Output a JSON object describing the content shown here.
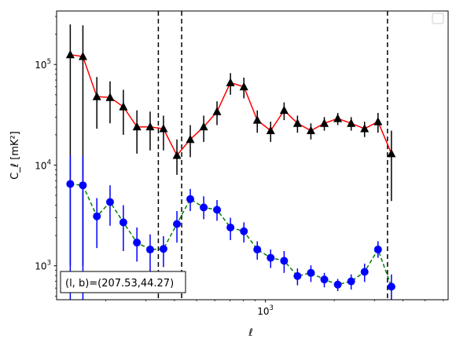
{
  "chart_data": {
    "type": "line",
    "xlabel": "ℓ",
    "ylabel": "C_ℓ [mK²]",
    "xscale": "log",
    "yscale": "log",
    "xlim": [
      122,
      6300
    ],
    "ylim": [
      460,
      340000
    ],
    "x_tick_labels": [
      {
        "value": 1000,
        "label": "10",
        "sup": "3"
      }
    ],
    "y_tick_labels": [
      {
        "value": 1000,
        "label": "10",
        "sup": "3"
      },
      {
        "value": 10000,
        "label": "10",
        "sup": "4"
      },
      {
        "value": 100000,
        "label": "10",
        "sup": "5"
      }
    ],
    "annotation": "(l, b)=(207.53,44.27)",
    "legend": {
      "position": "top-right",
      "entries": []
    },
    "grid": false,
    "vlines": [
      {
        "x": 340,
        "style": "dashed",
        "color": "#000000"
      },
      {
        "x": 430,
        "style": "dashed",
        "color": "#000000"
      },
      {
        "x": 3420,
        "style": "dashed",
        "color": "#000000"
      }
    ],
    "series": [
      {
        "color": "#ff0000",
        "marker": "triangle",
        "marker_color": "#000000",
        "line_style": "solid",
        "points": [
          {
            "x": 140,
            "y": 125000,
            "lo": 1000,
            "hi": 250000
          },
          {
            "x": 159,
            "y": 120000,
            "lo": 1000,
            "hi": 245000
          },
          {
            "x": 183,
            "y": 48000,
            "lo": 23000,
            "hi": 75000
          },
          {
            "x": 209,
            "y": 47000,
            "lo": 26000,
            "hi": 68000
          },
          {
            "x": 239,
            "y": 38000,
            "lo": 20000,
            "hi": 56000
          },
          {
            "x": 274,
            "y": 24000,
            "lo": 13000,
            "hi": 35000
          },
          {
            "x": 313,
            "y": 24000,
            "lo": 14000,
            "hi": 34000
          },
          {
            "x": 358,
            "y": 23000,
            "lo": 14000,
            "hi": 31000
          },
          {
            "x": 410,
            "y": 12500,
            "lo": 8000,
            "hi": 18000
          },
          {
            "x": 469,
            "y": 18000,
            "lo": 12000,
            "hi": 25000
          },
          {
            "x": 537,
            "y": 24000,
            "lo": 17000,
            "hi": 31000
          },
          {
            "x": 614,
            "y": 34000,
            "lo": 25000,
            "hi": 43000
          },
          {
            "x": 703,
            "y": 66000,
            "lo": 50000,
            "hi": 82000
          },
          {
            "x": 805,
            "y": 60000,
            "lo": 46000,
            "hi": 74000
          },
          {
            "x": 921,
            "y": 28000,
            "lo": 21000,
            "hi": 35000
          },
          {
            "x": 1054,
            "y": 22000,
            "lo": 17000,
            "hi": 27000
          },
          {
            "x": 1207,
            "y": 35000,
            "lo": 28000,
            "hi": 42000
          },
          {
            "x": 1381,
            "y": 26000,
            "lo": 21000,
            "hi": 31000
          },
          {
            "x": 1581,
            "y": 22000,
            "lo": 18000,
            "hi": 26000
          },
          {
            "x": 1810,
            "y": 26000,
            "lo": 22000,
            "hi": 30000
          },
          {
            "x": 2072,
            "y": 29000,
            "lo": 25000,
            "hi": 33000
          },
          {
            "x": 2372,
            "y": 26000,
            "lo": 22000,
            "hi": 30000
          },
          {
            "x": 2715,
            "y": 23000,
            "lo": 19000,
            "hi": 27000
          },
          {
            "x": 3108,
            "y": 27000,
            "lo": 21000,
            "hi": 33000
          },
          {
            "x": 3558,
            "y": 13000,
            "lo": 4400,
            "hi": 22000
          }
        ]
      },
      {
        "color": "#008000",
        "marker": "circle",
        "marker_color": "#0000ff",
        "line_style": "dashed",
        "points": [
          {
            "x": 140,
            "y": 6500,
            "lo": 400,
            "hi": 12500
          },
          {
            "x": 159,
            "y": 6300,
            "lo": 400,
            "hi": 12300
          },
          {
            "x": 183,
            "y": 3100,
            "lo": 1500,
            "hi": 4700
          },
          {
            "x": 209,
            "y": 4300,
            "lo": 2500,
            "hi": 6300
          },
          {
            "x": 239,
            "y": 2700,
            "lo": 1400,
            "hi": 4000
          },
          {
            "x": 274,
            "y": 1700,
            "lo": 1100,
            "hi": 2400
          },
          {
            "x": 313,
            "y": 1450,
            "lo": 850,
            "hi": 2050
          },
          {
            "x": 358,
            "y": 1470,
            "lo": 970,
            "hi": 1970
          },
          {
            "x": 410,
            "y": 2600,
            "lo": 1700,
            "hi": 3500
          },
          {
            "x": 469,
            "y": 4600,
            "lo": 3500,
            "hi": 5800
          },
          {
            "x": 537,
            "y": 3800,
            "lo": 2900,
            "hi": 4900
          },
          {
            "x": 614,
            "y": 3600,
            "lo": 2800,
            "hi": 4500
          },
          {
            "x": 703,
            "y": 2400,
            "lo": 1800,
            "hi": 3000
          },
          {
            "x": 805,
            "y": 2200,
            "lo": 1700,
            "hi": 2700
          },
          {
            "x": 921,
            "y": 1450,
            "lo": 1150,
            "hi": 1750
          },
          {
            "x": 1054,
            "y": 1200,
            "lo": 950,
            "hi": 1450
          },
          {
            "x": 1207,
            "y": 1120,
            "lo": 850,
            "hi": 1400
          },
          {
            "x": 1381,
            "y": 790,
            "lo": 640,
            "hi": 940
          },
          {
            "x": 1581,
            "y": 850,
            "lo": 690,
            "hi": 1010
          },
          {
            "x": 1810,
            "y": 730,
            "lo": 610,
            "hi": 850
          },
          {
            "x": 2072,
            "y": 650,
            "lo": 560,
            "hi": 740
          },
          {
            "x": 2372,
            "y": 700,
            "lo": 580,
            "hi": 820
          },
          {
            "x": 2715,
            "y": 870,
            "lo": 690,
            "hi": 1050
          },
          {
            "x": 3108,
            "y": 1450,
            "lo": 1200,
            "hi": 1750
          },
          {
            "x": 3558,
            "y": 620,
            "lo": 420,
            "hi": 820
          }
        ]
      }
    ]
  }
}
